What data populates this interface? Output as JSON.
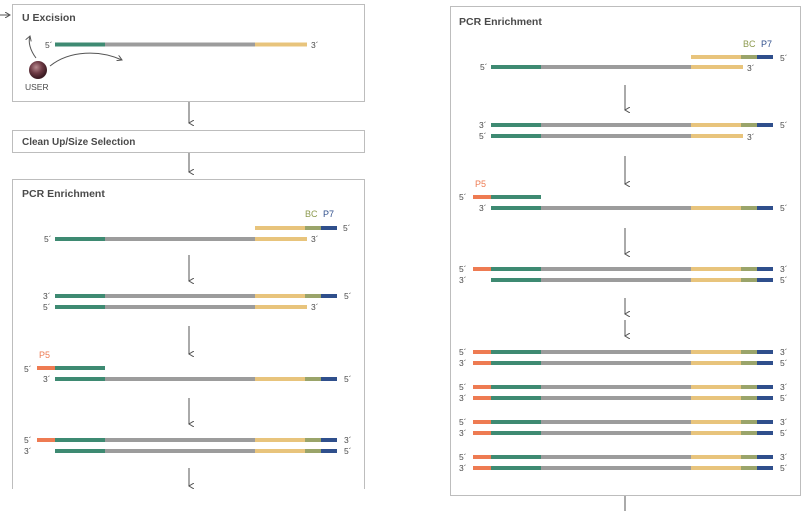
{
  "colors": {
    "green": "#3e8a72",
    "gray": "#9c9c9c",
    "yellow": "#e8c47c",
    "olive": "#9aa46a",
    "blue": "#2f4f8c",
    "orange": "#ee7b52",
    "panel_border": "#bdbdbd",
    "text": "#4a4a4a"
  },
  "left": {
    "u_excision": {
      "title": "U Excision",
      "enzyme_label": "USER"
    },
    "cleanup": {
      "title": "Clean Up/Size Selection"
    },
    "pcr": {
      "title": "PCR Enrichment"
    }
  },
  "right": {
    "pcr": {
      "title": "PCR Enrichment"
    }
  },
  "labels": {
    "five_prime_tail": "5´",
    "three_prime": "3´",
    "five_prime": "5´",
    "bc": "BC",
    "p7": "P7",
    "p5": "P5"
  }
}
